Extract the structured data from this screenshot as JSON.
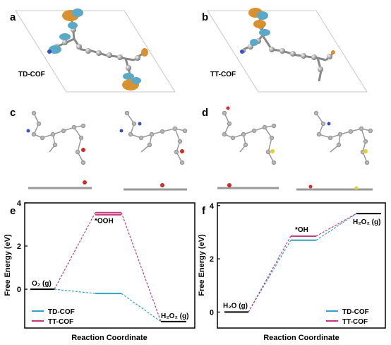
{
  "panels": {
    "a": {
      "letter": "a",
      "label": "TD-COF"
    },
    "b": {
      "letter": "b",
      "label": "TT-COF"
    },
    "c": {
      "letter": "c"
    },
    "d": {
      "letter": "d"
    },
    "e": {
      "letter": "e"
    },
    "f": {
      "letter": "f"
    }
  },
  "colors": {
    "td": "#2fa4c4",
    "tt": "#c43a7f",
    "base": "#000000",
    "orbital_blue": "#5aa9c8",
    "orbital_orange": "#d9902e",
    "atom_grey": "#9a9a9a",
    "atom_blue": "#3a4fc0",
    "atom_red": "#d02a2a",
    "atom_yellow": "#e5d02a"
  },
  "chart_data": [
    {
      "panel": "e",
      "type": "line",
      "xlabel": "Reaction Coordinate",
      "ylabel": "Free Energy (eV)",
      "ylim": [
        -1.8,
        4.0
      ],
      "yticks": [
        "0",
        "2",
        "4"
      ],
      "yticks_values": [
        0,
        2,
        4
      ],
      "steps": [
        {
          "label": "O₂ (g)",
          "series": "base",
          "value": 0
        },
        {
          "label": "*OOH",
          "series": "TT-COF",
          "value": 3.55
        },
        {
          "label": "",
          "series": "TD-COF",
          "value": -0.2
        },
        {
          "label": "H₂O₂ (g)",
          "series": "base",
          "value": -1.5
        }
      ],
      "series": [
        {
          "name": "TD-COF",
          "values": [
            0,
            -0.2,
            -1.5
          ]
        },
        {
          "name": "TT-COF",
          "values": [
            0,
            3.55,
            -1.5
          ]
        }
      ],
      "legend": "bottom-left"
    },
    {
      "panel": "f",
      "type": "line",
      "xlabel": "Reaction Coordinate",
      "ylabel": "Free Energy (eV)",
      "ylim": [
        -0.6,
        4.1
      ],
      "yticks": [
        "0",
        "2",
        "4"
      ],
      "yticks_values": [
        0,
        2,
        4
      ],
      "steps": [
        {
          "label": "H₂O (g)",
          "series": "base",
          "value": 0
        },
        {
          "label": "*OH",
          "series": "TT-COF",
          "value": 2.85
        },
        {
          "label": "H₂O₂ (g)",
          "series": "base",
          "value": 3.7
        }
      ],
      "series": [
        {
          "name": "TD-COF",
          "values": [
            0,
            2.7,
            3.7
          ]
        },
        {
          "name": "TT-COF",
          "values": [
            0,
            2.85,
            3.7
          ]
        }
      ],
      "legend": "bottom-right"
    }
  ]
}
